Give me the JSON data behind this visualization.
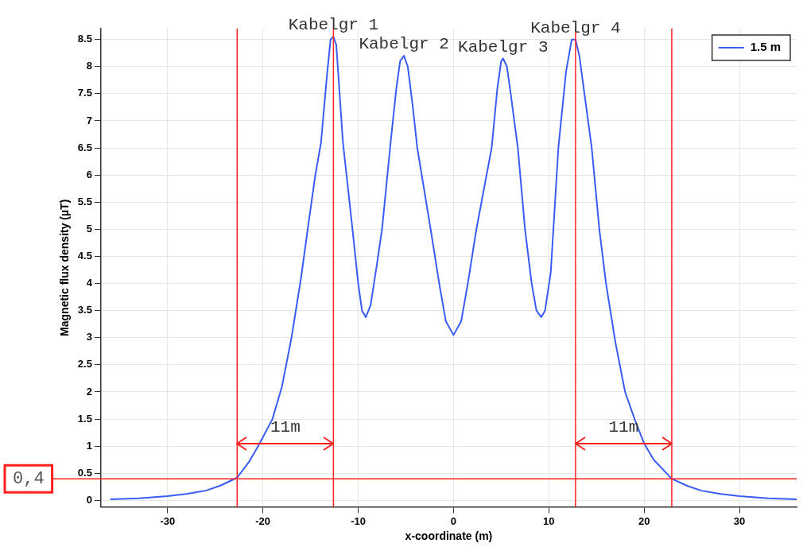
{
  "chart_data": {
    "type": "line",
    "xlabel": "x-coordinate (m)",
    "ylabel": "Magnetic flux density (µT)",
    "xlim": [
      -37,
      36
    ],
    "xticks": [
      -30,
      -20,
      -10,
      0,
      10,
      20,
      30
    ],
    "ylim": [
      -0.12,
      8.7
    ],
    "yticks": [
      0,
      0.5,
      1,
      1.5,
      2,
      2.5,
      3,
      3.5,
      4,
      4.5,
      5,
      5.5,
      6,
      6.5,
      7,
      7.5,
      8,
      8.5
    ],
    "grid": true,
    "legend": "top right",
    "marker": "none",
    "line_style": "solid",
    "series": [
      {
        "name": "1.5 m",
        "color": "#3b5bf5",
        "x": [
          -36,
          -33,
          -30,
          -28,
          -26,
          -24.5,
          -22.7,
          -21.5,
          -20.5,
          -19,
          -18,
          -17,
          -16,
          -15.3,
          -14.5,
          -13.9,
          -13.3,
          -12.9,
          -12.6,
          -12.3,
          -11.6,
          -10.6,
          -10,
          -9.6,
          -9.2,
          -8.7,
          -8,
          -7.5,
          -6.6,
          -6,
          -5.6,
          -5.2,
          -4.8,
          -4.3,
          -3.8,
          -2.4,
          -1.5,
          -0.8,
          0,
          0.8,
          1.5,
          2.4,
          4,
          4.6,
          5,
          5.2,
          5.6,
          6,
          6.75,
          7.5,
          8.2,
          8.7,
          9.2,
          9.6,
          10.2,
          11,
          11.8,
          12.4,
          12.8,
          13.2,
          14.5,
          15.3,
          16,
          17,
          18,
          19,
          20,
          21,
          22.9,
          24.5,
          26,
          28,
          30,
          33,
          36
        ],
        "values": [
          0.02,
          0.04,
          0.08,
          0.12,
          0.18,
          0.27,
          0.42,
          0.7,
          1.0,
          1.5,
          2.1,
          3.0,
          4.1,
          5.0,
          6.0,
          6.6,
          7.8,
          8.5,
          8.55,
          8.4,
          6.6,
          5.0,
          4.0,
          3.5,
          3.38,
          3.6,
          4.4,
          5.0,
          6.6,
          7.6,
          8.1,
          8.2,
          8.0,
          7.3,
          6.5,
          5.0,
          4.0,
          3.3,
          3.05,
          3.3,
          4.0,
          5.0,
          6.5,
          7.6,
          8.1,
          8.15,
          8.0,
          7.5,
          6.5,
          5.0,
          4.0,
          3.5,
          3.38,
          3.5,
          4.2,
          6.5,
          7.9,
          8.5,
          8.5,
          8.2,
          6.5,
          5.0,
          4.0,
          2.9,
          2.0,
          1.5,
          1.05,
          0.75,
          0.4,
          0.27,
          0.18,
          0.12,
          0.08,
          0.04,
          0.02
        ]
      }
    ],
    "ref_lines": [
      {
        "axis": "x",
        "value": -22.7,
        "color": "#ff2020"
      },
      {
        "axis": "x",
        "value": -12.6,
        "color": "#ff2020"
      },
      {
        "axis": "x",
        "value": 12.8,
        "color": "#ff2020"
      },
      {
        "axis": "x",
        "value": 22.9,
        "color": "#ff2020"
      },
      {
        "axis": "y",
        "value": 0.4,
        "label": "0,4",
        "color": "#ff2020"
      }
    ],
    "annotations": [
      {
        "text": "Kabelgr 1",
        "x": -12.6,
        "y": 8.55
      },
      {
        "text": "Kabelgr 2",
        "x": -5.2,
        "y": 8.2
      },
      {
        "text": "Kabelgr 3",
        "x": 5.2,
        "y": 8.15
      },
      {
        "text": "Kabelgr 4",
        "x": 12.8,
        "y": 8.5
      },
      "11m",
      "11m"
    ]
  }
}
